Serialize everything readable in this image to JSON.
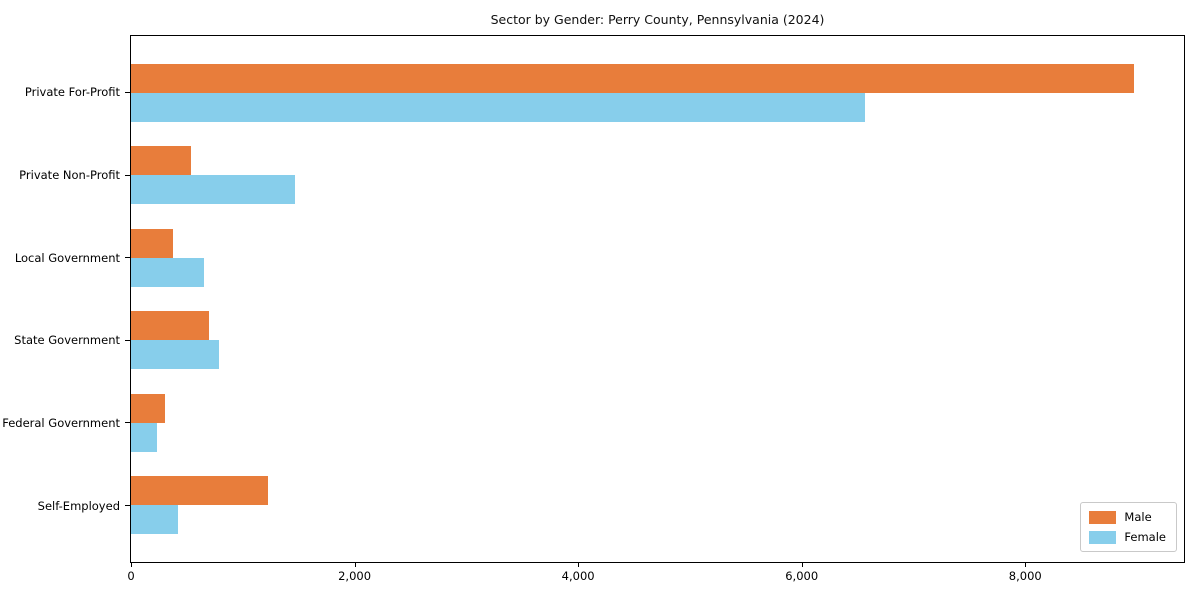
{
  "chart_data": {
    "type": "bar",
    "orientation": "horizontal",
    "title": "Sector by Gender: Perry County, Pennsylvania (2024)",
    "categories": [
      "Private For-Profit",
      "Private Non-Profit",
      "Local Government",
      "State Government",
      "Federal Government",
      "Self-Employed"
    ],
    "series": [
      {
        "name": "Male",
        "color": "#e87d3b",
        "values": [
          8970,
          535,
          380,
          695,
          305,
          1230
        ]
      },
      {
        "name": "Female",
        "color": "#87ceeb",
        "values": [
          6570,
          1465,
          650,
          790,
          230,
          420
        ]
      }
    ],
    "xlabel": "",
    "ylabel": "",
    "xlim": [
      0,
      9420
    ],
    "xticks": [
      0,
      2000,
      4000,
      6000,
      8000
    ],
    "xtick_labels": [
      "0",
      "2,000",
      "4,000",
      "6,000",
      "8,000"
    ],
    "grid": false,
    "legend_position": "lower right"
  }
}
